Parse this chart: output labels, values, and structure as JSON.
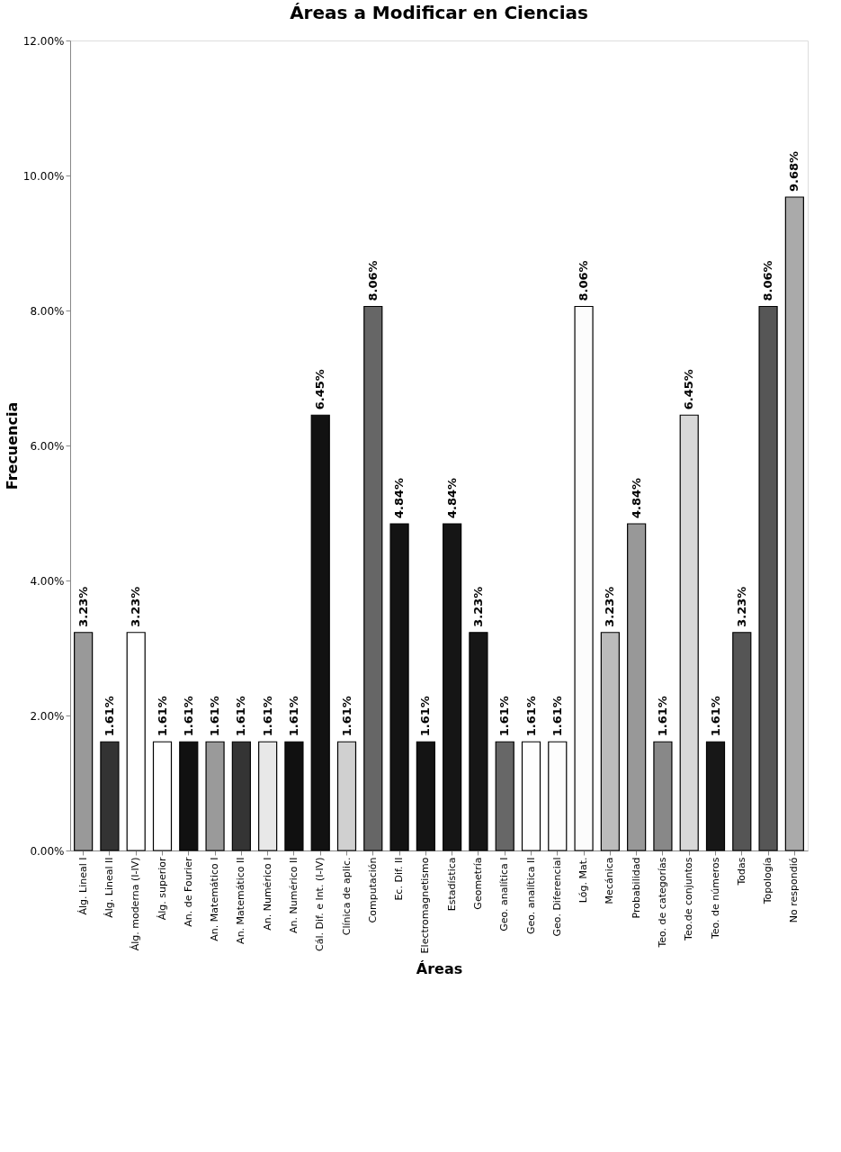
{
  "chart_data": {
    "type": "bar",
    "title": "Áreas a Modificar en Ciencias",
    "xlabel": "Áreas",
    "ylabel": "Frecuencia",
    "categories": [
      "Álg. Lineal I",
      "Álg. Lineal II",
      "Álg. moderna (I-IV)",
      "Álg. superior",
      "An. de Fourier",
      "An. Matemático I",
      "An. Matemático II",
      "An. Numérico I",
      "An. Numérico II",
      "Cál. Dif. e Int. (I-IV)",
      "Clínica de aplic.",
      "Computación",
      "Ec. Dif. II",
      "Electromagnetismo",
      "Estadística",
      "Geometría",
      "Geo. analítica I",
      "Geo. analítica II",
      "Geo. Diferencial",
      "Lóg. Mat.",
      "Mecánica",
      "Probabilidad",
      "Teo. de categorías",
      "Teo.de conjuntos",
      "Teo. de números",
      "Todas",
      "Topología",
      "No respondió"
    ],
    "values": [
      3.23,
      1.61,
      3.23,
      1.61,
      1.61,
      1.61,
      1.61,
      1.61,
      1.61,
      6.45,
      1.61,
      8.06,
      4.84,
      1.61,
      4.84,
      3.23,
      1.61,
      1.61,
      1.61,
      8.06,
      3.23,
      4.84,
      1.61,
      6.45,
      1.61,
      3.23,
      8.06,
      9.68
    ],
    "colors": [
      "#999999",
      "#333333",
      "#ffffff",
      "#ffffff",
      "#111111",
      "#9a9a9a",
      "#343434",
      "#e8e8e8",
      "#101010",
      "#121212",
      "#d0d0d0",
      "#666666",
      "#131313",
      "#141414",
      "#151515",
      "#161616",
      "#676767",
      "#fefefe",
      "#fdfdfd",
      "#fcfcfc",
      "#bbbbbb",
      "#989898",
      "#888888",
      "#d8d8d8",
      "#171717",
      "#555555",
      "#565656",
      "#aaaaaa"
    ],
    "value_labels": [
      "3.23%",
      "1.61%",
      "3.23%",
      "1.61%",
      "1.61%",
      "1.61%",
      "1.61%",
      "1.61%",
      "1.61%",
      "6.45%",
      "1.61%",
      "8.06%",
      "4.84%",
      "1.61%",
      "4.84%",
      "3.23%",
      "1.61%",
      "1.61%",
      "1.61%",
      "8.06%",
      "3.23%",
      "4.84%",
      "1.61%",
      "6.45%",
      "1.61%",
      "3.23%",
      "8.06%",
      "9.68%"
    ],
    "ylim": [
      0,
      12
    ],
    "yticks": [
      {
        "value": 0,
        "label": "0.00%"
      },
      {
        "value": 2,
        "label": "2.00%"
      },
      {
        "value": 4,
        "label": "4.00%"
      },
      {
        "value": 6,
        "label": "6.00%"
      },
      {
        "value": 8,
        "label": "8.00%"
      },
      {
        "value": 10,
        "label": "10.00%"
      },
      {
        "value": 12,
        "label": "12.00%"
      }
    ],
    "grid": false,
    "legend": false
  }
}
